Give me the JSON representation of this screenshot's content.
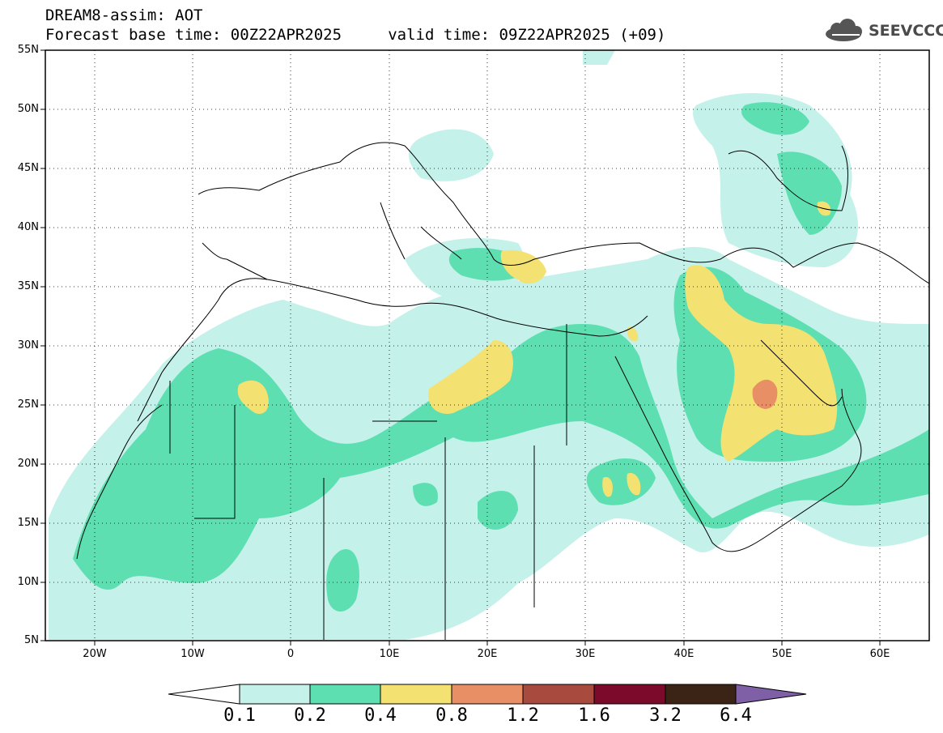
{
  "title": {
    "line1": "DREAM8-assim: AOT",
    "line2": "Forecast base time: 00Z22APR2025     valid time: 09Z22APR2025 (+09)"
  },
  "logo": {
    "text": "SEEVCCC",
    "icon": "cloud-logo-icon"
  },
  "map": {
    "lat_labels": [
      "55N",
      "50N",
      "45N",
      "40N",
      "35N",
      "30N",
      "25N",
      "20N",
      "15N",
      "10N",
      "5N"
    ],
    "lon_labels": [
      "20W",
      "10W",
      "0",
      "10E",
      "20E",
      "30E",
      "40E",
      "50E",
      "60E"
    ],
    "extent": {
      "lon": [
        -25,
        65
      ],
      "lat": [
        5,
        55
      ]
    },
    "gridlines": "dotted",
    "field": "AOT (aerosol optical thickness)"
  },
  "colorbar": {
    "labels": [
      "0.1",
      "0.2",
      "0.4",
      "0.8",
      "1.2",
      "1.6",
      "3.2",
      "6.4"
    ],
    "colors": [
      "#ffffff",
      "#c4f1ea",
      "#5ddfb2",
      "#f3e271",
      "#e98f66",
      "#a84b3e",
      "#7c0a2a",
      "#3b2315",
      "#7f5fa6"
    ]
  }
}
